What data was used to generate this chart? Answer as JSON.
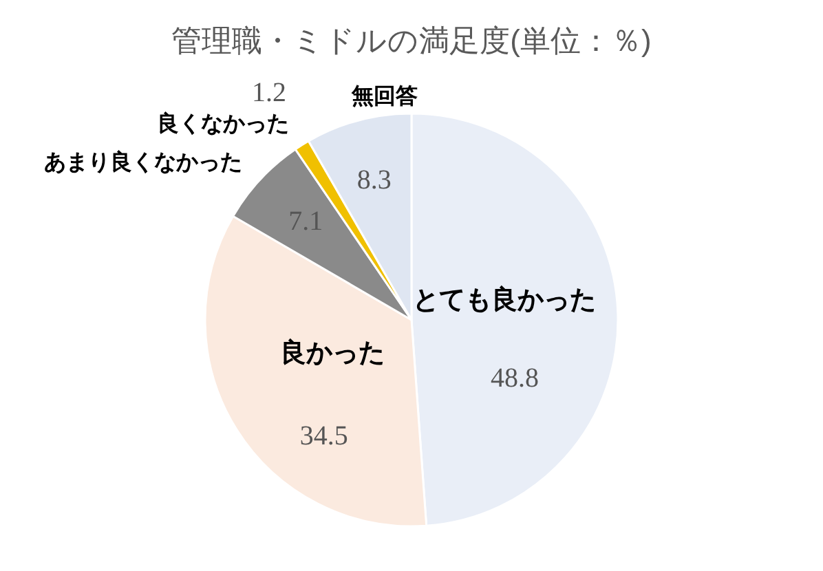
{
  "chart_data": {
    "type": "pie",
    "title": "管理職・ミドルの満足度(単位：％)",
    "categories": [
      "とても良かった",
      "良かった",
      "あまり良くなかった",
      "良くなかった",
      "無回答"
    ],
    "values": [
      48.8,
      34.5,
      7.1,
      1.2,
      8.3
    ],
    "colors": [
      "#e9eef7",
      "#fbeadf",
      "#8a8a8a",
      "#f0c000",
      "#dfe6f2"
    ],
    "data_labels": true
  }
}
